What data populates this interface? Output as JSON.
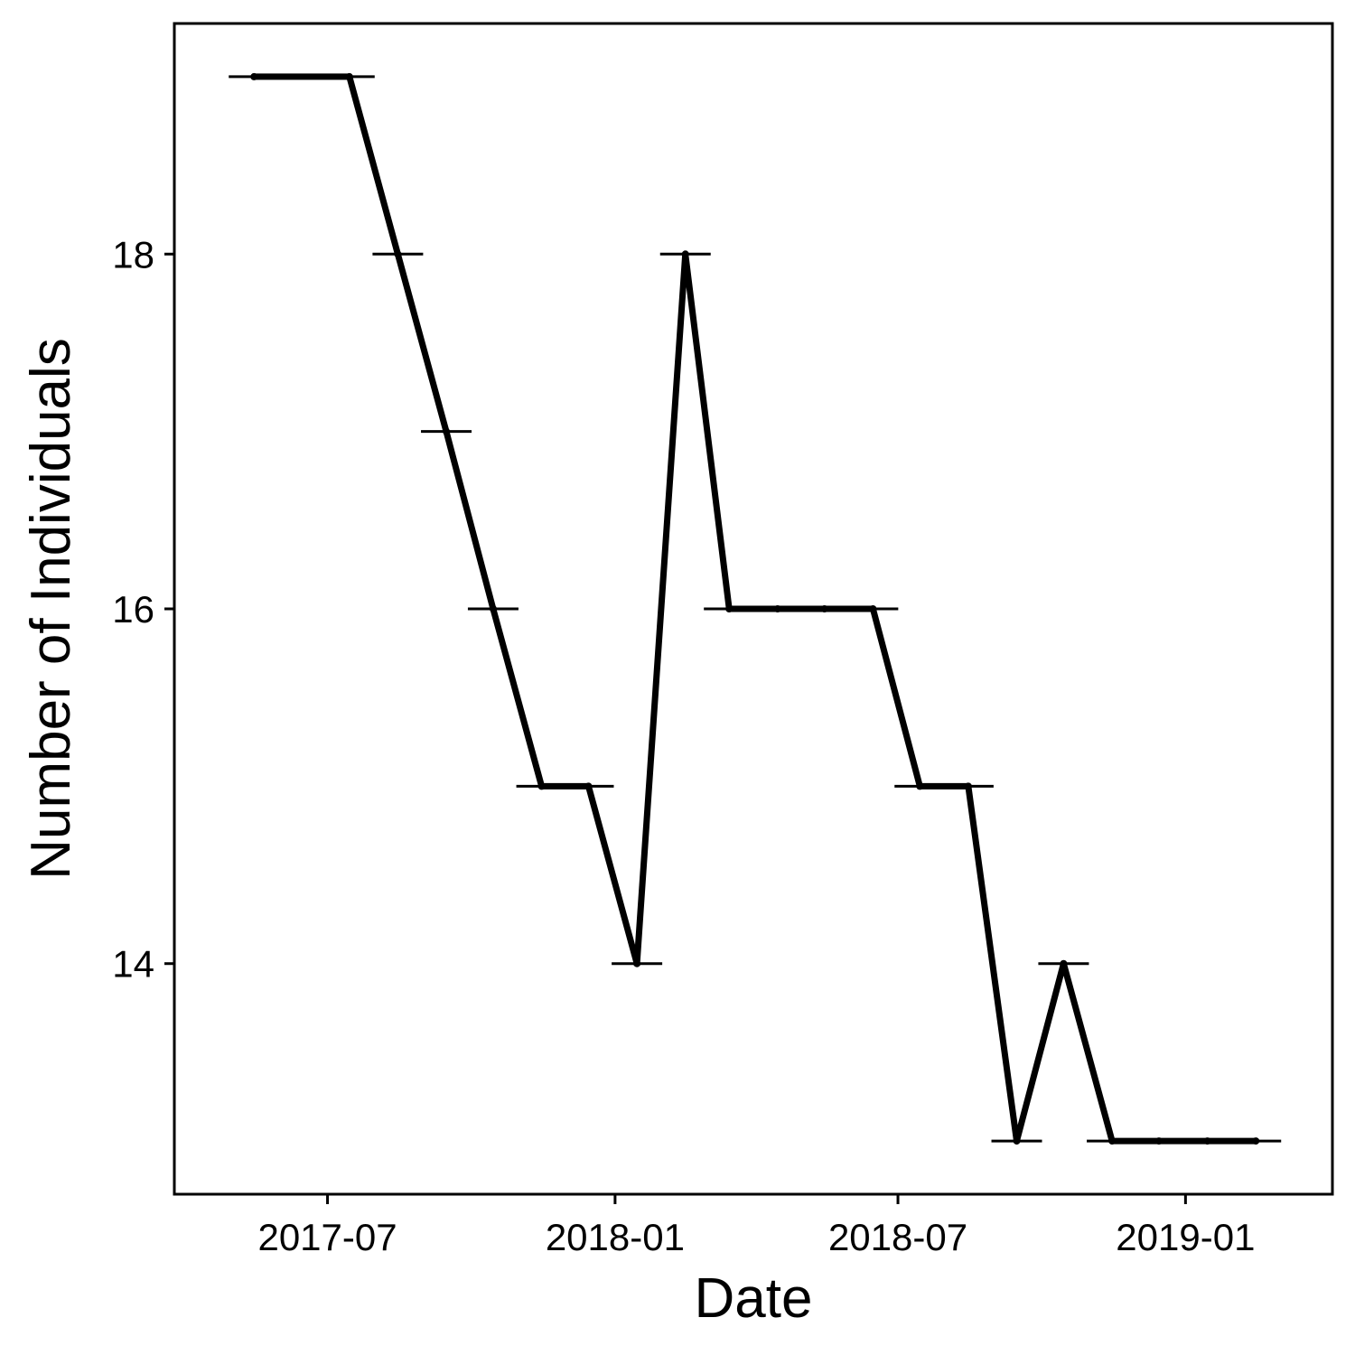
{
  "chart_data": {
    "type": "line",
    "title": "",
    "xlabel": "Date",
    "ylabel": "Number of Individuals",
    "x_ticks": [
      {
        "date": "2017-07-01",
        "label": "2017-07"
      },
      {
        "date": "2018-01-01",
        "label": "2018-01"
      },
      {
        "date": "2018-07-01",
        "label": "2018-07"
      },
      {
        "date": "2019-01-01",
        "label": "2019-01"
      }
    ],
    "y_ticks": [
      {
        "value": 14,
        "label": "14"
      },
      {
        "value": 16,
        "label": "16"
      },
      {
        "value": 18,
        "label": "18"
      }
    ],
    "xlim": [
      "2017-03-25",
      "2019-04-05"
    ],
    "ylim": [
      12.7,
      19.3
    ],
    "grid": false,
    "line_color": "#000000",
    "points": [
      {
        "date": "2017-05-15",
        "value": 19
      },
      {
        "date": "2017-07-15",
        "value": 19
      },
      {
        "date": "2017-08-15",
        "value": 18
      },
      {
        "date": "2017-09-15",
        "value": 17
      },
      {
        "date": "2017-10-15",
        "value": 16
      },
      {
        "date": "2017-11-15",
        "value": 15
      },
      {
        "date": "2017-12-15",
        "value": 15
      },
      {
        "date": "2018-01-15",
        "value": 14
      },
      {
        "date": "2018-02-15",
        "value": 18
      },
      {
        "date": "2018-03-15",
        "value": 16
      },
      {
        "date": "2018-04-15",
        "value": 16
      },
      {
        "date": "2018-05-15",
        "value": 16
      },
      {
        "date": "2018-06-15",
        "value": 16
      },
      {
        "date": "2018-07-15",
        "value": 15
      },
      {
        "date": "2018-08-15",
        "value": 15
      },
      {
        "date": "2018-09-15",
        "value": 13
      },
      {
        "date": "2018-10-15",
        "value": 14
      },
      {
        "date": "2018-11-15",
        "value": 13
      },
      {
        "date": "2018-12-15",
        "value": 13
      },
      {
        "date": "2019-01-15",
        "value": 13
      },
      {
        "date": "2019-02-15",
        "value": 13
      }
    ]
  }
}
